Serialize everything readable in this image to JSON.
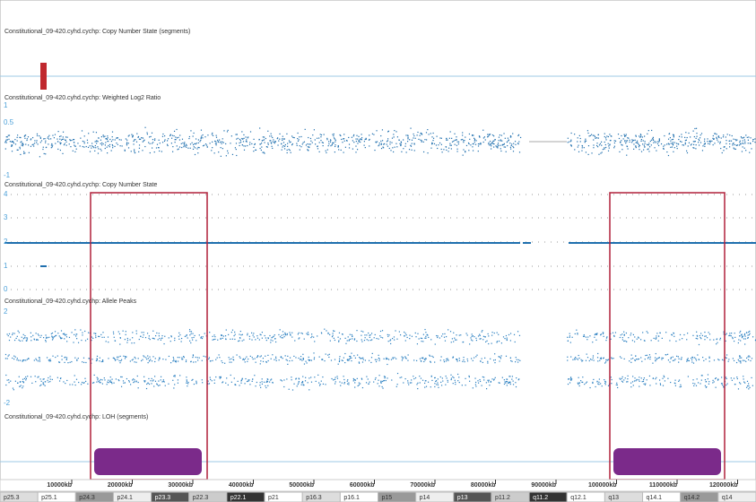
{
  "tracks": [
    {
      "title": "Constitutional_09-420.cyhd.cychp: Copy Number State (segments)",
      "labels": []
    },
    {
      "title": "Constitutional_09-420.cyhd.cychp: Weighted Log2 Ratio",
      "labels": [
        "1",
        "0.5",
        "-1"
      ]
    },
    {
      "title": "Constitutional_09-420.cyhd.cychp: Copy Number State",
      "labels": [
        "4",
        "3",
        "2",
        "1",
        "0"
      ]
    },
    {
      "title": "Constitutional_09-420.cyhd.cychp: Allele Peaks",
      "labels": [
        "2",
        "-2"
      ]
    },
    {
      "title": "Constitutional_09-420.cyhd.cychp: LOH (segments)",
      "labels": []
    }
  ],
  "ruler": {
    "ticks": [
      "10000kb",
      "20000kb",
      "30000kb",
      "40000kb",
      "50000kb",
      "60000kb",
      "70000kb",
      "80000kb",
      "90000kb",
      "100000kb",
      "110000kb",
      "120000kb"
    ]
  },
  "cytobands": [
    "p25.3",
    "p25.1",
    "p24.3",
    "p24.1",
    "p23.3",
    "p22.3",
    "p22.1",
    "p21",
    "p16.3",
    "p16.1",
    "p15",
    "p14",
    "p13",
    "p11.2",
    "q11.2",
    "q12.1",
    "q13",
    "q14.1",
    "q14.2",
    "q14"
  ]
}
